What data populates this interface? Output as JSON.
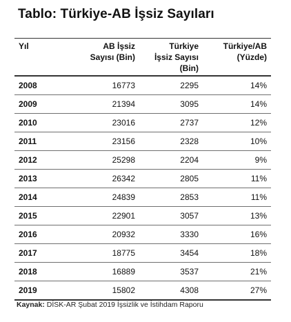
{
  "title": "Tablo: Türkiye-AB İşsiz Sayıları",
  "table": {
    "headers": {
      "year": "Yıl",
      "ab_line1": "AB İşsiz",
      "ab_line2": "Sayısı (Bin)",
      "tr_line1": "Türkiye",
      "tr_line2": "İşsiz Sayısı",
      "tr_line3": "(Bin)",
      "pct_line1": "Türkiye/AB",
      "pct_line2": "(Yüzde)"
    },
    "rows": [
      {
        "year": "2008",
        "ab": "16773",
        "tr": "2295",
        "pct": "14%"
      },
      {
        "year": "2009",
        "ab": "21394",
        "tr": "3095",
        "pct": "14%"
      },
      {
        "year": "2010",
        "ab": "23016",
        "tr": "2737",
        "pct": "12%"
      },
      {
        "year": "2011",
        "ab": "23156",
        "tr": "2328",
        "pct": "10%"
      },
      {
        "year": "2012",
        "ab": "25298",
        "tr": "2204",
        "pct": "9%"
      },
      {
        "year": "2013",
        "ab": "26342",
        "tr": "2805",
        "pct": "11%"
      },
      {
        "year": "2014",
        "ab": "24839",
        "tr": "2853",
        "pct": "11%"
      },
      {
        "year": "2015",
        "ab": "22901",
        "tr": "3057",
        "pct": "13%"
      },
      {
        "year": "2016",
        "ab": "20932",
        "tr": "3330",
        "pct": "16%"
      },
      {
        "year": "2017",
        "ab": "18775",
        "tr": "3454",
        "pct": "18%"
      },
      {
        "year": "2018",
        "ab": "16889",
        "tr": "3537",
        "pct": "21%"
      },
      {
        "year": "2019",
        "ab": "15802",
        "tr": "4308",
        "pct": "27%"
      }
    ]
  },
  "source": {
    "label": "Kaynak:",
    "text": "DİSK-AR Şubat 2019 İşsizlik ve İstihdam Raporu"
  }
}
